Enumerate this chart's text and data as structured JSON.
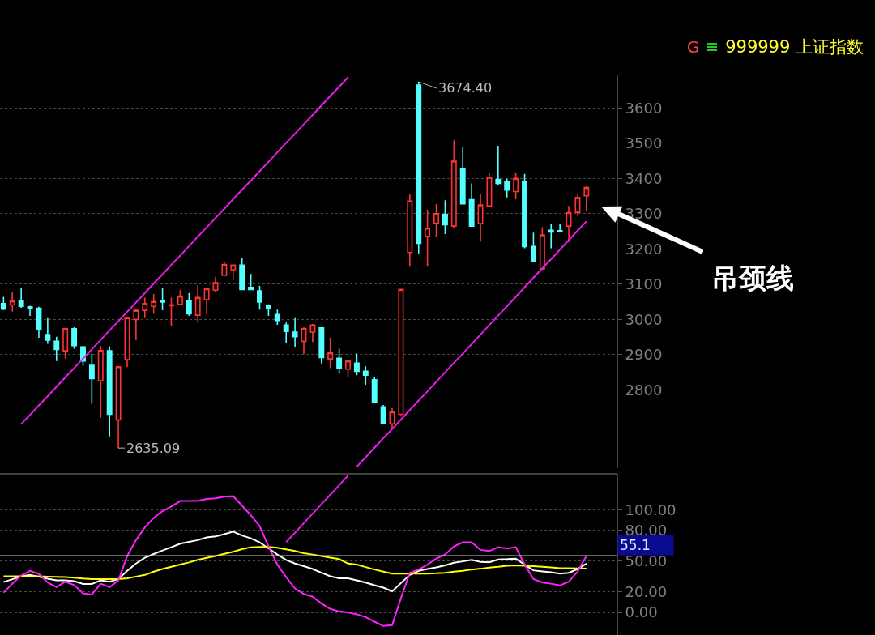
{
  "chart_data": [
    {
      "type": "candlestick",
      "categories": [
        null,
        null,
        null,
        null,
        null,
        null,
        null,
        null,
        null,
        null,
        null,
        null,
        null,
        null,
        null,
        null,
        null,
        null,
        null,
        null,
        null,
        null,
        null,
        null,
        null,
        null,
        null,
        null,
        null,
        null,
        null,
        null,
        null,
        null,
        null,
        null,
        null,
        null,
        null,
        null,
        null,
        null,
        null,
        null,
        null,
        null,
        null,
        null,
        null,
        null,
        null,
        null,
        null,
        null,
        null,
        null,
        null,
        null,
        null,
        null,
        null,
        null,
        null,
        null,
        null,
        null,
        null
      ],
      "ohlc": [
        [
          3045,
          3064,
          3026,
          3030
        ],
        [
          3041,
          3079,
          3022,
          3052
        ],
        [
          3054,
          3089,
          3033,
          3037
        ],
        [
          3036,
          3039,
          3010,
          3032
        ],
        [
          3032,
          3036,
          2948,
          2972
        ],
        [
          2957,
          3004,
          2931,
          2941
        ],
        [
          2938,
          2951,
          2882,
          2915
        ],
        [
          2911,
          2977,
          2889,
          2974
        ],
        [
          2974,
          2978,
          2917,
          2926
        ],
        [
          2922,
          2925,
          2869,
          2882
        ],
        [
          2870,
          2903,
          2761,
          2832
        ],
        [
          2826,
          2925,
          2721,
          2912
        ],
        [
          2911,
          2924,
          2668,
          2731
        ],
        [
          2715,
          2868,
          2635.09,
          2866
        ],
        [
          2886,
          3008,
          2865,
          3005
        ],
        [
          3000,
          3030,
          2941,
          3026
        ],
        [
          3026,
          3062,
          3004,
          3045
        ],
        [
          3037,
          3072,
          3016,
          3051
        ],
        [
          3054,
          3089,
          3026,
          3049
        ],
        [
          3039,
          3062,
          2981,
          3041
        ],
        [
          3043,
          3083,
          3043,
          3066
        ],
        [
          3054,
          3075,
          3010,
          3016
        ],
        [
          3012,
          3098,
          2991,
          3062
        ],
        [
          3056,
          3089,
          3014,
          3087
        ],
        [
          3083,
          3121,
          3078,
          3104
        ],
        [
          3125,
          3162,
          3124,
          3156
        ],
        [
          3141,
          3154,
          3112,
          3154
        ],
        [
          3154,
          3173,
          3085,
          3085
        ],
        [
          3091,
          3129,
          3083,
          3085
        ],
        [
          3081,
          3095,
          3028,
          3049
        ],
        [
          3039,
          3043,
          3010,
          3031
        ],
        [
          3014,
          3028,
          2985,
          2997
        ],
        [
          2984,
          2991,
          2934,
          2966
        ],
        [
          2964,
          3004,
          2921,
          2951
        ],
        [
          2938,
          2978,
          2902,
          2974
        ],
        [
          2964,
          2987,
          2936,
          2984
        ],
        [
          2976,
          2978,
          2875,
          2892
        ],
        [
          2888,
          2948,
          2862,
          2905
        ],
        [
          2890,
          2917,
          2846,
          2862
        ],
        [
          2859,
          2886,
          2838,
          2882
        ],
        [
          2876,
          2903,
          2842,
          2853
        ],
        [
          2853,
          2867,
          2815,
          2842
        ],
        [
          2829,
          2836,
          2764,
          2765
        ],
        [
          2752,
          2757,
          2704,
          2705
        ],
        [
          2704,
          2748,
          2692,
          2738
        ],
        [
          2731,
          3087,
          2728,
          3085
        ],
        [
          3190,
          3355,
          3150,
          3336
        ],
        [
          3665,
          3674.4,
          3187,
          3216
        ],
        [
          3236,
          3311,
          3150,
          3259
        ],
        [
          3273,
          3327,
          3233,
          3300
        ],
        [
          3298,
          3338,
          3242,
          3269
        ],
        [
          3265,
          3508,
          3259,
          3449
        ],
        [
          3428,
          3488,
          3328,
          3328
        ],
        [
          3340,
          3386,
          3265,
          3265
        ],
        [
          3272,
          3355,
          3221,
          3325
        ],
        [
          3322,
          3415,
          3319,
          3403
        ],
        [
          3397,
          3493,
          3382,
          3386
        ],
        [
          3390,
          3399,
          3346,
          3367
        ],
        [
          3363,
          3416,
          3341,
          3400
        ],
        [
          3390,
          3413,
          3202,
          3207
        ],
        [
          3207,
          3246,
          3166,
          3166
        ],
        [
          3143,
          3262,
          3141,
          3240
        ],
        [
          3253,
          3272,
          3202,
          3248
        ],
        [
          3252,
          3271,
          3248,
          3249
        ],
        [
          3265,
          3322,
          3219,
          3303
        ],
        [
          3304,
          3354,
          3294,
          3346
        ],
        [
          3351,
          3378,
          3308,
          3374
        ]
      ],
      "colors": [
        "#54ffff",
        "#ff3333",
        "#54ffff",
        "#54ffff",
        "#54ffff",
        "#54ffff",
        "#54ffff",
        "#ff3333",
        "#54ffff",
        "#54ffff",
        "#54ffff",
        "#ff3333",
        "#54ffff",
        "#ff3333",
        "#ff3333",
        "#ff3333",
        "#ff3333",
        "#ff3333",
        "#54ffff",
        "#ff3333",
        "#ff3333",
        "#54ffff",
        "#ff3333",
        "#ff3333",
        "#ff3333",
        "#ff3333",
        "#ff3333",
        "#54ffff",
        "#54ffff",
        "#54ffff",
        "#54ffff",
        "#54ffff",
        "#54ffff",
        "#54ffff",
        "#ff3333",
        "#ff3333",
        "#54ffff",
        "#ff3333",
        "#54ffff",
        "#ff3333",
        "#54ffff",
        "#54ffff",
        "#54ffff",
        "#54ffff",
        "#ff3333",
        "#ff3333",
        "#ff3333",
        "#54ffff",
        "#ff3333",
        "#ff3333",
        "#54ffff",
        "#ff3333",
        "#54ffff",
        "#54ffff",
        "#ff3333",
        "#ff3333",
        "#54ffff",
        "#54ffff",
        "#ff3333",
        "#54ffff",
        "#54ffff",
        "#ff3333",
        "#54ffff",
        "#54ffff",
        "#ff3333",
        "#ff3333",
        "#ff3333"
      ],
      "series": [
        {
          "type": "line",
          "color": "#e81ee8",
          "values": [
            null,
            null,
            2703,
            2729,
            2756,
            2782,
            2809,
            2836,
            2862,
            2889,
            2915,
            2942,
            2969,
            2995,
            3022,
            3048,
            3075,
            3102,
            3128,
            3155,
            3181,
            3208,
            3235,
            3261,
            3288,
            3314,
            3341,
            3368,
            3394,
            3421,
            3447,
            3474,
            3501,
            3527,
            3554,
            3580,
            3607,
            3634,
            3660,
            3687,
            null,
            null,
            null,
            null,
            null,
            null,
            null,
            null,
            null,
            null,
            null,
            null,
            null,
            null,
            null,
            null,
            null,
            null,
            null,
            null,
            null,
            null,
            null,
            null,
            null,
            null,
            null
          ]
        },
        {
          "type": "line",
          "color": "#e81ee8",
          "values": [
            null,
            null,
            null,
            null,
            null,
            null,
            null,
            null,
            null,
            null,
            null,
            null,
            null,
            null,
            null,
            null,
            null,
            null,
            null,
            null,
            null,
            null,
            null,
            null,
            null,
            null,
            null,
            null,
            null,
            null,
            null,
            null,
            null,
            null,
            null,
            null,
            null,
            null,
            null,
            null,
            2582,
            2609,
            2636,
            2663,
            2689,
            2716,
            2743,
            2770,
            2796,
            2823,
            2850,
            2877,
            2903,
            2930,
            2957,
            2984,
            3011,
            3037,
            3064,
            3091,
            3118,
            3145,
            3171,
            3198,
            3225,
            3252,
            3278
          ]
        }
      ],
      "annotations": [
        "3674.40",
        "2635.09",
        "吊颈线",
        "G",
        "999999 上证指数"
      ],
      "ylim": [
        2578,
        3695
      ],
      "yticks": [
        2800,
        2900,
        3000,
        3100,
        3200,
        3300,
        3400,
        3500,
        3600
      ],
      "grid": "y",
      "tick_labels": "y"
    },
    {
      "type": "line",
      "categories": [
        null,
        null,
        null,
        null,
        null,
        null,
        null,
        null,
        null,
        null,
        null,
        null,
        null,
        null,
        null,
        null,
        null,
        null,
        null,
        null,
        null,
        null,
        null,
        null,
        null,
        null,
        null,
        null,
        null,
        null,
        null,
        null,
        null,
        null,
        null,
        null,
        null,
        null,
        null,
        null,
        null,
        null,
        null,
        null,
        null,
        null,
        null,
        null,
        null,
        null,
        null,
        null,
        null,
        null,
        null,
        null,
        null,
        null,
        null,
        null,
        null,
        null,
        null,
        null,
        null,
        null,
        null
      ],
      "series": [
        {
          "color": "#ffffff",
          "values": [
            29.6,
            32.3,
            35.2,
            36.5,
            34.7,
            32.8,
            31.2,
            31.2,
            30.4,
            27.8,
            27.8,
            31.2,
            29.9,
            32.5,
            40.5,
            47.6,
            53.2,
            56.9,
            60.3,
            63.5,
            66.9,
            68.8,
            70.4,
            73.0,
            74.1,
            76.2,
            78.8,
            74.9,
            72.2,
            68.2,
            62.4,
            56.4,
            51.1,
            47.6,
            45.0,
            42.3,
            38.6,
            35.2,
            33.3,
            33.3,
            31.2,
            29.1,
            26.5,
            24.1,
            20.6,
            28.6,
            36.5,
            40.5,
            42.3,
            43.9,
            45.8,
            48.4,
            49.7,
            51.1,
            49.2,
            48.9,
            51.6,
            51.9,
            52.4,
            46.6,
            41.0,
            40.0,
            39.2,
            37.8,
            38.6,
            42.3,
            47.6
          ]
        },
        {
          "color": "#ffff00",
          "values": [
            35.2,
            35.2,
            35.2,
            35.2,
            35.2,
            34.9,
            34.7,
            34.4,
            33.9,
            33.1,
            32.5,
            32.5,
            32.5,
            32.5,
            33.3,
            34.9,
            36.5,
            39.7,
            42.3,
            44.4,
            46.6,
            48.7,
            51.1,
            53.2,
            55.0,
            57.1,
            59.0,
            61.6,
            63.5,
            63.8,
            63.8,
            63.0,
            61.4,
            59.8,
            57.7,
            56.4,
            55.0,
            53.4,
            51.9,
            47.6,
            46.6,
            44.2,
            41.8,
            39.7,
            37.8,
            37.8,
            37.8,
            37.8,
            37.8,
            38.1,
            38.6,
            39.7,
            40.5,
            41.8,
            42.6,
            43.7,
            44.4,
            45.5,
            45.8,
            45.5,
            45.0,
            44.4,
            43.9,
            43.1,
            43.1,
            42.9,
            42.6
          ]
        },
        {
          "color": "#ff22ff",
          "values": [
            19.3,
            28.0,
            36.0,
            40.5,
            37.6,
            29.1,
            24.6,
            29.9,
            26.7,
            18.5,
            17.5,
            28.0,
            24.6,
            31.2,
            55.0,
            70.4,
            82.8,
            92.1,
            98.7,
            103.2,
            108.5,
            108.5,
            108.5,
            110.6,
            111.1,
            112.7,
            113.2,
            104.0,
            94.7,
            84.1,
            64.3,
            46.6,
            34.4,
            23.3,
            18.0,
            15.4,
            8.7,
            3.4,
            1.0,
            0.0,
            -1.8,
            -4.5,
            -9.0,
            -13.2,
            -12.4,
            14.0,
            38.6,
            41.8,
            46.6,
            52.4,
            56.4,
            64.3,
            68.3,
            68.3,
            60.9,
            59.8,
            63.5,
            62.2,
            63.5,
            46.6,
            32.5,
            29.1,
            28.0,
            26.4,
            29.9,
            39.7,
            55.1
          ]
        },
        {
          "color": "#e81ee8",
          "values": [
            null,
            null,
            null,
            null,
            null,
            null,
            null,
            null,
            null,
            null,
            null,
            null,
            null,
            null,
            null,
            null,
            null,
            null,
            null,
            null,
            null,
            null,
            null,
            null,
            null,
            null,
            null,
            null,
            null,
            null,
            null,
            null,
            68.5,
            77.7,
            87.0,
            96.2,
            105.5,
            114.7,
            123.9,
            133.2,
            null,
            null,
            null,
            null,
            null,
            null,
            null,
            null,
            null,
            null,
            null,
            null,
            null,
            null,
            null,
            null,
            null,
            null,
            null,
            null,
            null,
            null,
            null,
            null,
            null,
            null,
            null
          ]
        }
      ],
      "ref_lines": [
        {
          "axis": "y",
          "value": 55.1,
          "label": "55.1",
          "color": "#c8c8c8"
        }
      ],
      "ylim": [
        -22,
        135
      ],
      "yticks": [
        {
          "value": 0,
          "label": "0.00"
        },
        {
          "value": 20,
          "label": "20.00"
        },
        {
          "value": 50,
          "label": "50.00"
        },
        {
          "value": 80,
          "label": "80.00"
        },
        {
          "value": 100,
          "label": "100.00"
        }
      ],
      "grid": "y",
      "marker": "none",
      "tick_labels": "y"
    }
  ]
}
